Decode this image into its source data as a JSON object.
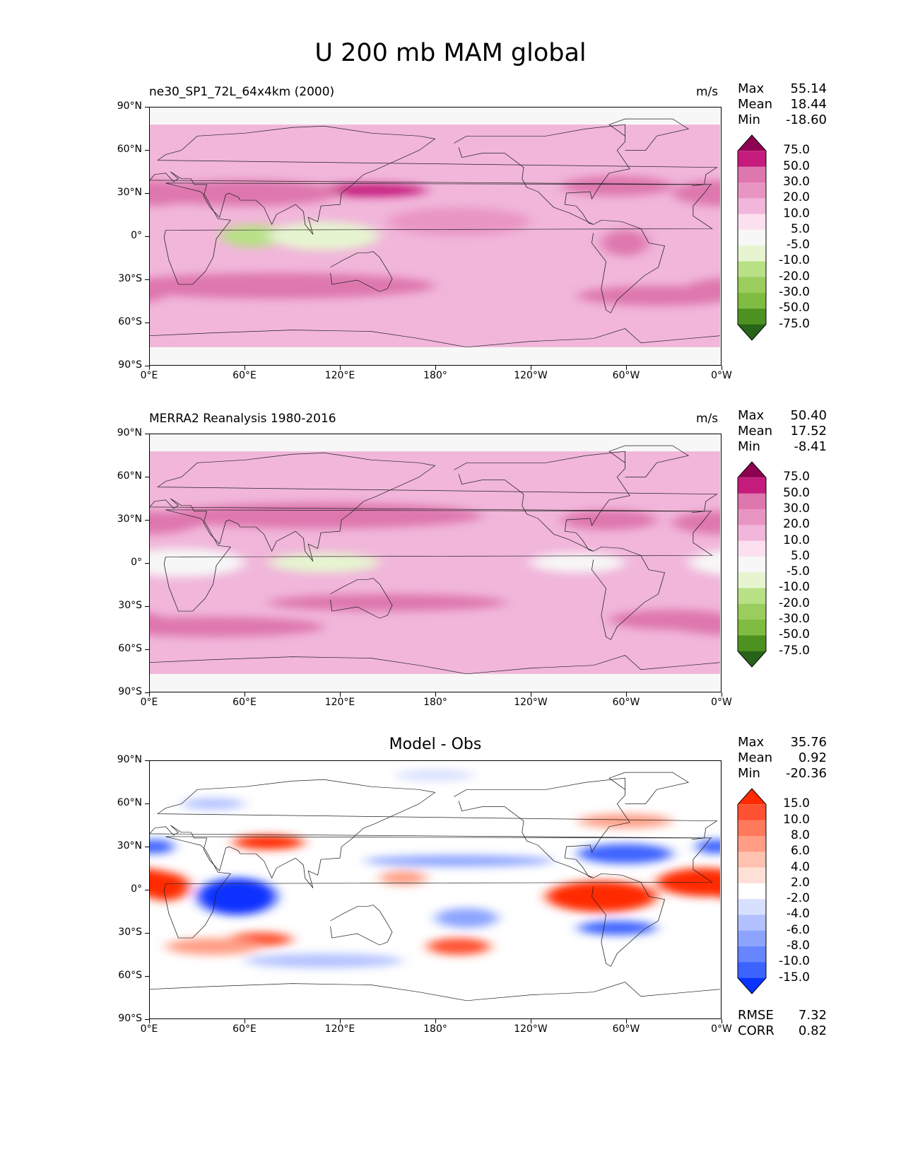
{
  "figure": {
    "title": "U 200 mb MAM global",
    "lat_ticks": [
      "90°N",
      "60°N",
      "30°N",
      "0°",
      "30°S",
      "60°S",
      "90°S"
    ],
    "lon_ticks": [
      "0°E",
      "60°E",
      "120°E",
      "180°",
      "120°W",
      "60°W",
      "0°W"
    ]
  },
  "chart_data": [
    {
      "type": "heatmap",
      "name": "model",
      "title": "ne30_SP1_72L_64x4km (2000)",
      "units": "m/s",
      "stats": {
        "max": "55.14",
        "mean": "18.44",
        "min": "-18.60"
      },
      "stat_labels": {
        "max": "Max",
        "mean": "Mean",
        "min": "Min"
      },
      "colorbar": {
        "levels": [
          "75.0",
          "50.0",
          "30.0",
          "20.0",
          "10.0",
          "5.0",
          "-5.0",
          "-10.0",
          "-20.0",
          "-30.0",
          "-50.0",
          "-75.0"
        ],
        "colors": [
          "#8e0152",
          "#c51b7d",
          "#de77ae",
          "#e995c4",
          "#f1b6da",
          "#fde0ef",
          "#f7f7f7",
          "#e6f5d0",
          "#b8e186",
          "#9acd5e",
          "#7fbc41",
          "#4d9221",
          "#276419"
        ]
      },
      "x_label_range": [
        0,
        360
      ],
      "y_range": [
        -90,
        90
      ],
      "fields": [
        {
          "lon": 140,
          "lat": 32,
          "w": 70,
          "h": 9,
          "value": 55
        },
        {
          "lon": 65,
          "lat": 32,
          "w": 40,
          "h": 7,
          "value": 50
        },
        {
          "lon": 60,
          "lat": 30,
          "w": 120,
          "h": 18,
          "value": 35
        },
        {
          "lon": 295,
          "lat": 35,
          "w": 70,
          "h": 14,
          "value": 35
        },
        {
          "lon": 0,
          "lat": 30,
          "w": 60,
          "h": 18,
          "value": 30
        },
        {
          "lon": 300,
          "lat": -5,
          "w": 30,
          "h": 18,
          "value": 30
        },
        {
          "lon": 80,
          "lat": -35,
          "w": 200,
          "h": 18,
          "value": 35
        },
        {
          "lon": 320,
          "lat": -42,
          "w": 100,
          "h": 14,
          "value": 35
        },
        {
          "lon": 65,
          "lat": 0,
          "w": 40,
          "h": 16,
          "value": -12
        },
        {
          "lon": 110,
          "lat": 0,
          "w": 70,
          "h": 20,
          "value": -6
        },
        {
          "lon": 195,
          "lat": 10,
          "w": 90,
          "h": 20,
          "value": 20
        }
      ]
    },
    {
      "type": "heatmap",
      "name": "obs",
      "title": "MERRA2 Reanalysis 1980-2016",
      "units": "m/s",
      "stats": {
        "max": "50.40",
        "mean": "17.52",
        "min": "-8.41"
      },
      "stat_labels": {
        "max": "Max",
        "mean": "Mean",
        "min": "Min"
      },
      "colorbar": {
        "levels": [
          "75.0",
          "50.0",
          "30.0",
          "20.0",
          "10.0",
          "5.0",
          "-5.0",
          "-10.0",
          "-20.0",
          "-30.0",
          "-50.0",
          "-75.0"
        ],
        "colors": [
          "#8e0152",
          "#c51b7d",
          "#de77ae",
          "#e995c4",
          "#f1b6da",
          "#fde0ef",
          "#f7f7f7",
          "#e6f5d0",
          "#b8e186",
          "#9acd5e",
          "#7fbc41",
          "#4d9221",
          "#276419"
        ]
      },
      "y_range": [
        -90,
        90
      ],
      "fields": [
        {
          "lon": 110,
          "lat": 33,
          "w": 200,
          "h": 18,
          "value": 35
        },
        {
          "lon": 0,
          "lat": 28,
          "w": 60,
          "h": 16,
          "value": 32
        },
        {
          "lon": 290,
          "lat": 30,
          "w": 60,
          "h": 14,
          "value": 32
        },
        {
          "lon": 20,
          "lat": 30,
          "w": 40,
          "h": 10,
          "value": 32
        },
        {
          "lon": 150,
          "lat": -28,
          "w": 150,
          "h": 12,
          "value": 33
        },
        {
          "lon": 40,
          "lat": -45,
          "w": 140,
          "h": 14,
          "value": 33
        },
        {
          "lon": 330,
          "lat": -40,
          "w": 80,
          "h": 14,
          "value": 33
        },
        {
          "lon": 110,
          "lat": 0,
          "w": 70,
          "h": 14,
          "value": -6
        },
        {
          "lon": 270,
          "lat": 0,
          "w": 60,
          "h": 14,
          "value": 4
        },
        {
          "lon": 20,
          "lat": 0,
          "w": 80,
          "h": 20,
          "value": 3
        }
      ]
    },
    {
      "type": "heatmap",
      "name": "diff",
      "title": "Model - Obs",
      "units": "",
      "stats": {
        "max": "35.76",
        "mean": "0.92",
        "min": "-20.36"
      },
      "stat_labels": {
        "max": "Max",
        "mean": "Mean",
        "min": "Min"
      },
      "metrics": {
        "rmse_label": "RMSE",
        "rmse": "7.32",
        "corr_label": "CORR",
        "corr": "0.82"
      },
      "colorbar": {
        "levels": [
          "15.0",
          "10.0",
          "8.0",
          "6.0",
          "4.0",
          "2.0",
          "-2.0",
          "-4.0",
          "-6.0",
          "-8.0",
          "-10.0",
          "-15.0"
        ],
        "colors": [
          "#ff2a00",
          "#ff5233",
          "#ff7a5c",
          "#ff9e85",
          "#ffc1b0",
          "#ffe0d6",
          "#ffffff",
          "#d8e0ff",
          "#b3c2ff",
          "#8da4ff",
          "#6685ff",
          "#3d63ff",
          "#0a33ff"
        ]
      },
      "y_range": [
        -90,
        90
      ],
      "fields": [
        {
          "lon": 285,
          "lat": -5,
          "w": 70,
          "h": 22,
          "value": 18
        },
        {
          "lon": 350,
          "lat": 5,
          "w": 60,
          "h": 20,
          "value": 15
        },
        {
          "lon": 10,
          "lat": 2,
          "w": 30,
          "h": 20,
          "value": 18
        },
        {
          "lon": 75,
          "lat": 33,
          "w": 45,
          "h": 10,
          "value": 16
        },
        {
          "lon": 195,
          "lat": -40,
          "w": 40,
          "h": 12,
          "value": 14
        },
        {
          "lon": 70,
          "lat": -35,
          "w": 40,
          "h": 10,
          "value": 10
        },
        {
          "lon": 40,
          "lat": -40,
          "w": 60,
          "h": 12,
          "value": 6
        },
        {
          "lon": 55,
          "lat": -5,
          "w": 50,
          "h": 26,
          "value": -16
        },
        {
          "lon": 300,
          "lat": 25,
          "w": 60,
          "h": 14,
          "value": -14
        },
        {
          "lon": 295,
          "lat": -27,
          "w": 50,
          "h": 10,
          "value": -12
        },
        {
          "lon": 195,
          "lat": 20,
          "w": 120,
          "h": 8,
          "value": -8
        },
        {
          "lon": 5,
          "lat": 30,
          "w": 20,
          "h": 10,
          "value": -12
        },
        {
          "lon": 355,
          "lat": 30,
          "w": 20,
          "h": 10,
          "value": -12
        },
        {
          "lon": 200,
          "lat": -20,
          "w": 40,
          "h": 14,
          "value": -8
        },
        {
          "lon": 300,
          "lat": 48,
          "w": 60,
          "h": 10,
          "value": 6
        },
        {
          "lon": 160,
          "lat": 8,
          "w": 30,
          "h": 10,
          "value": 6
        },
        {
          "lon": 110,
          "lat": -50,
          "w": 100,
          "h": 10,
          "value": -6
        },
        {
          "lon": 40,
          "lat": 60,
          "w": 40,
          "h": 8,
          "value": -6
        },
        {
          "lon": 180,
          "lat": 80,
          "w": 50,
          "h": 8,
          "value": -4
        }
      ]
    }
  ]
}
